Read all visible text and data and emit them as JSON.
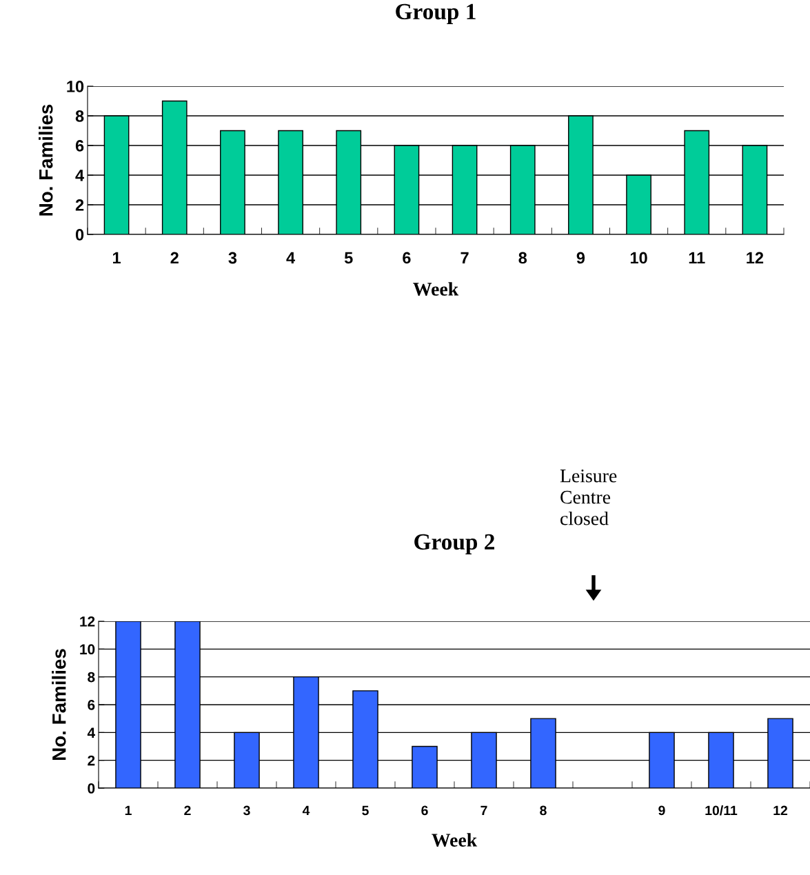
{
  "chart_data": [
    {
      "type": "bar",
      "title": "Group 1",
      "xlabel": "Week",
      "ylabel": "No. Families",
      "categories": [
        "1",
        "2",
        "3",
        "4",
        "5",
        "6",
        "7",
        "8",
        "9",
        "10",
        "11",
        "12"
      ],
      "values": [
        8,
        9,
        7,
        7,
        7,
        6,
        6,
        6,
        8,
        4,
        7,
        6
      ],
      "color": "#00cc99",
      "ylim": [
        0,
        10
      ],
      "yticks": [
        0,
        2,
        4,
        6,
        8,
        10
      ],
      "grid": "y"
    },
    {
      "type": "bar",
      "title": "Group 2",
      "xlabel": "Week",
      "ylabel": "No. Families",
      "categories": [
        "1",
        "2",
        "3",
        "4",
        "5",
        "6",
        "7",
        "8",
        null,
        "9",
        "10/11",
        "12"
      ],
      "values": [
        12,
        12,
        4,
        8,
        7,
        3,
        4,
        5,
        null,
        4,
        4,
        5
      ],
      "color": "#3366ff",
      "ylim": [
        0,
        12
      ],
      "yticks": [
        0,
        2,
        4,
        6,
        8,
        10,
        12
      ],
      "grid": "y",
      "annotations": [
        "Leisure\nCentre\nclosed"
      ]
    }
  ]
}
